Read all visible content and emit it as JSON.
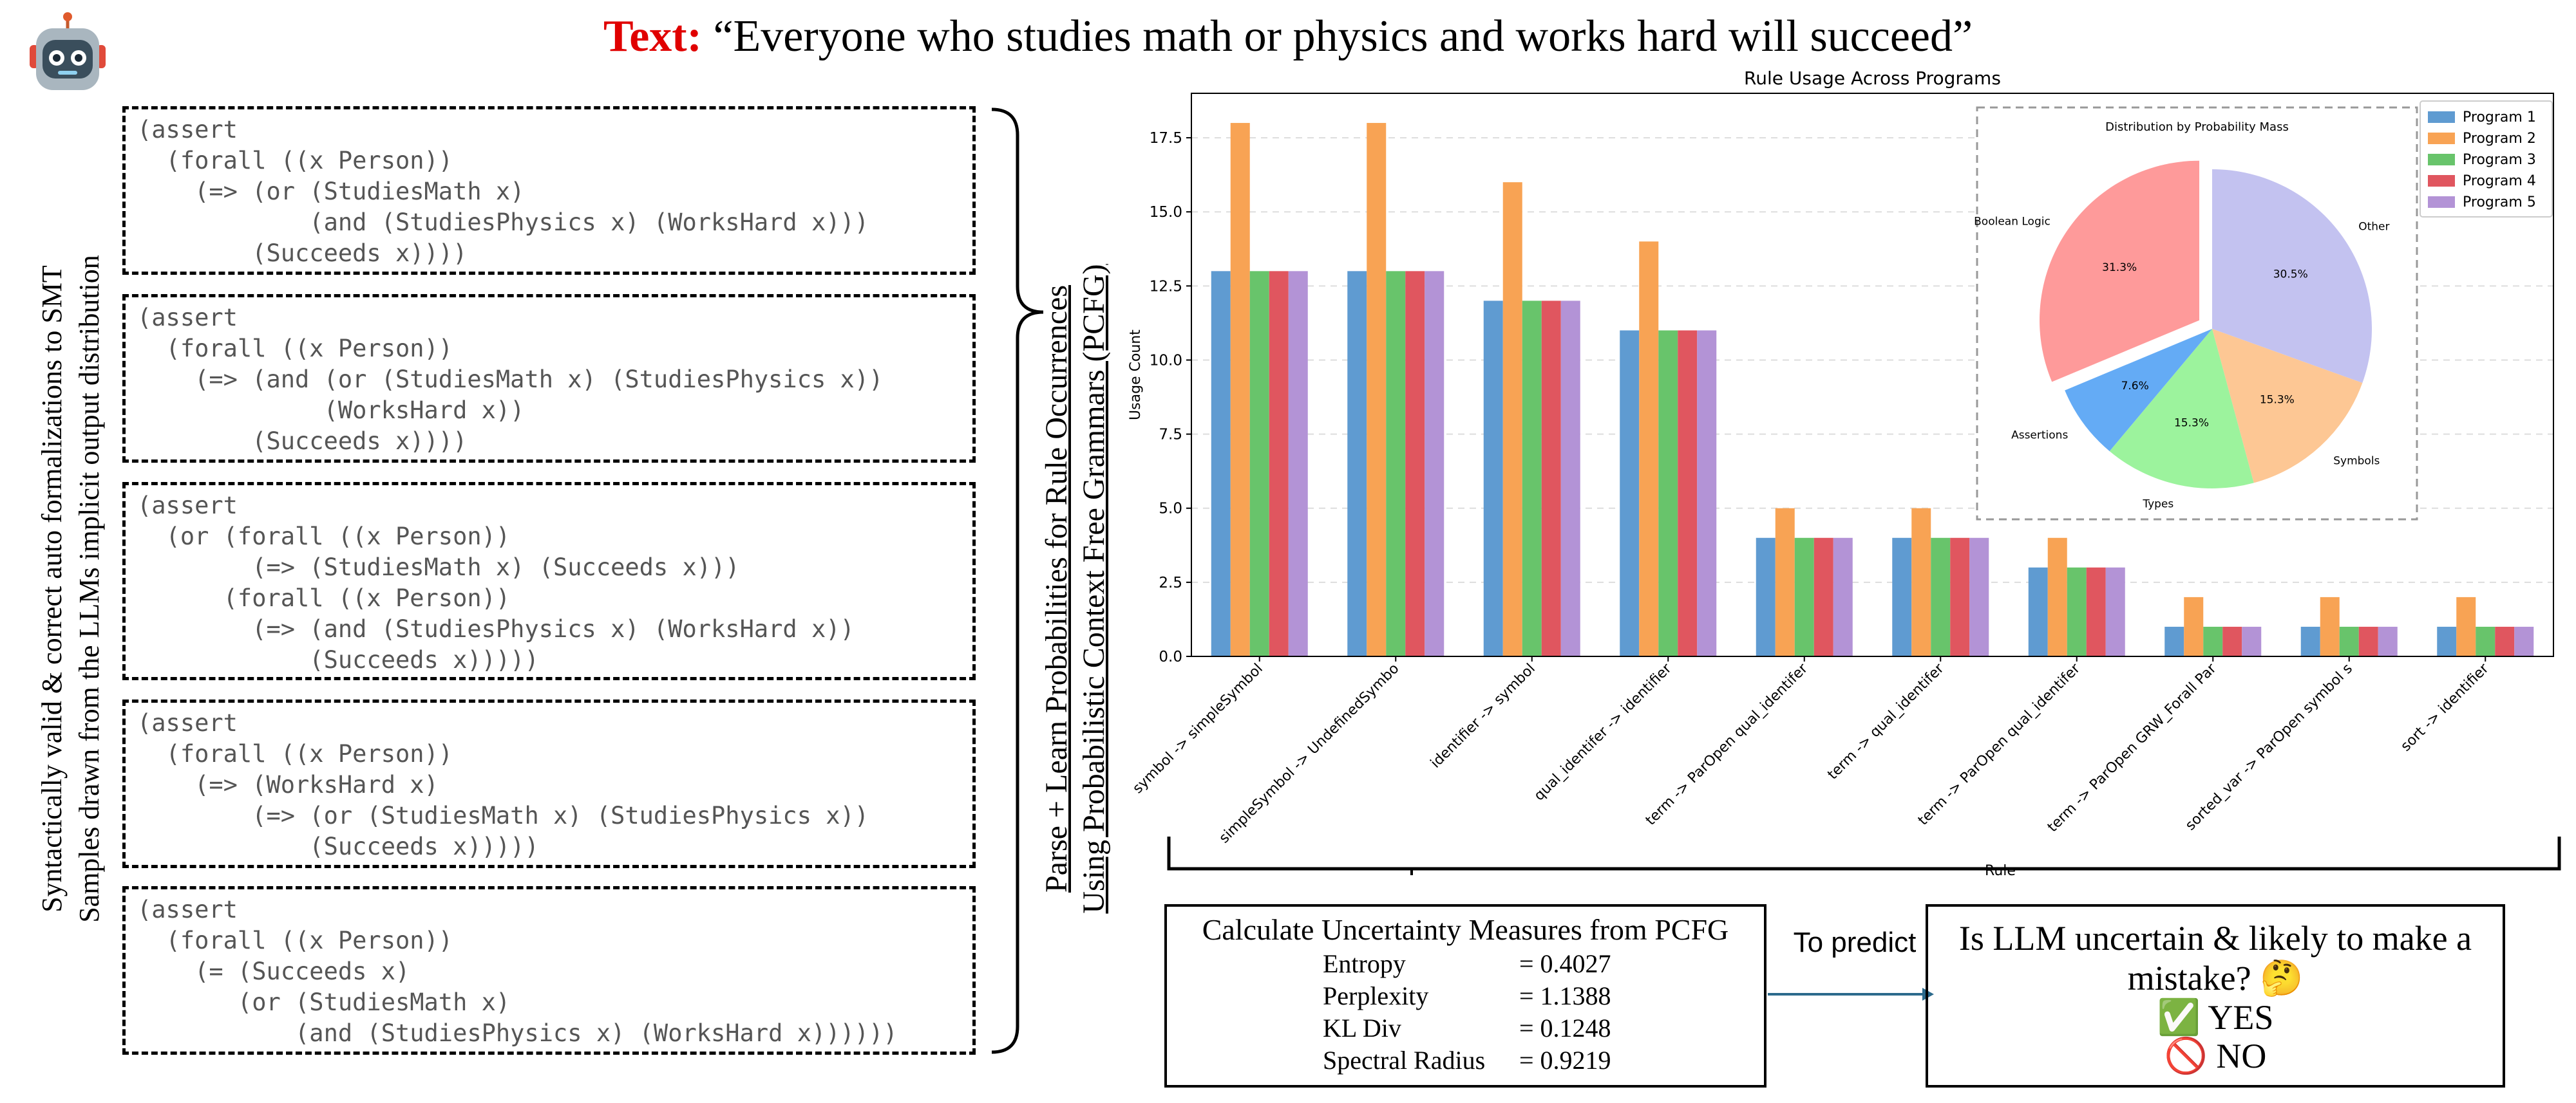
{
  "header": {
    "label": "Text:",
    "quote": "“Everyone who studies math or physics and works hard will succeed”"
  },
  "side_caption": {
    "line1": "Syntactically valid & correct auto formalizations to SMT",
    "line2": "Samples drawn from the LLMs implicit output distribution"
  },
  "code_samples": [
    "(assert\n  (forall ((x Person))\n    (=> (or (StudiesMath x)\n            (and (StudiesPhysics x) (WorksHard x)))\n        (Succeeds x))))",
    "(assert\n  (forall ((x Person))\n    (=> (and (or (StudiesMath x) (StudiesPhysics x))\n             (WorksHard x))\n        (Succeeds x))))",
    "(assert\n  (or (forall ((x Person))\n        (=> (StudiesMath x) (Succeeds x)))\n      (forall ((x Person))\n        (=> (and (StudiesPhysics x) (WorksHard x))\n            (Succeeds x)))))",
    "(assert\n  (forall ((x Person))\n    (=> (WorksHard x)\n        (=> (or (StudiesMath x) (StudiesPhysics x))\n            (Succeeds x)))))",
    "(assert\n  (forall ((x Person))\n    (= (Succeeds x)\n       (or (StudiesMath x)\n           (and (StudiesPhysics x) (WorksHard x))))))"
  ],
  "pcfg_caption": {
    "line1": "Parse + Learn Probabilities for Rule Occurrences",
    "line2": "Using Probabilistic Context Free Grammars (PCFG)"
  },
  "chart_data": [
    {
      "type": "bar",
      "title": "Rule Usage Across Programs",
      "xlabel": "Rule",
      "ylabel": "Usage Count",
      "ylim": [
        0,
        19
      ],
      "yticks": [
        "0.0",
        "2.5",
        "5.0",
        "7.5",
        "10.0",
        "12.5",
        "15.0",
        "17.5"
      ],
      "ytick_values": [
        0,
        2.5,
        5,
        7.5,
        10,
        12.5,
        15,
        17.5
      ],
      "grid": "horizontal dashed",
      "legend": "top-right",
      "categories": [
        "symbol -> simpleSymbol",
        "simpleSymbol -> UndefinedSymbo",
        "identifier -> symbol",
        "qual_identifer -> identifier",
        "term -> ParOpen qual_identifer",
        "term -> qual_identifer",
        "term -> ParOpen qual_identifer",
        "term -> ParOpen GRW_Forall Par",
        "sorted_var -> ParOpen symbol s",
        "sort -> identifier"
      ],
      "series": [
        {
          "name": "Program 1",
          "color": "#5f9bd1",
          "values": [
            13,
            13,
            12,
            11,
            4,
            4,
            3,
            1,
            1,
            1
          ]
        },
        {
          "name": "Program 2",
          "color": "#f8a354",
          "values": [
            18,
            18,
            16,
            14,
            5,
            5,
            4,
            2,
            2,
            2
          ]
        },
        {
          "name": "Program 3",
          "color": "#68c46b",
          "values": [
            13,
            13,
            12,
            11,
            4,
            4,
            3,
            1,
            1,
            1
          ]
        },
        {
          "name": "Program 4",
          "color": "#e0565f",
          "values": [
            13,
            13,
            12,
            11,
            4,
            4,
            3,
            1,
            1,
            1
          ]
        },
        {
          "name": "Program 5",
          "color": "#b393d6",
          "values": [
            13,
            13,
            12,
            11,
            4,
            4,
            3,
            1,
            1,
            1
          ]
        }
      ]
    },
    {
      "type": "pie",
      "title": "Distribution by Probability Mass",
      "slices": [
        {
          "label": "Other",
          "value": 30.5,
          "text": "30.5%",
          "color": "#c3c2f0"
        },
        {
          "label": "Symbols",
          "value": 15.3,
          "text": "15.3%",
          "color": "#fdc794"
        },
        {
          "label": "Types",
          "value": 15.3,
          "text": "15.3%",
          "color": "#9cf39d"
        },
        {
          "label": "Assertions",
          "value": 7.6,
          "text": "7.6%",
          "color": "#64abf5"
        },
        {
          "label": "Boolean Logic",
          "value": 31.3,
          "text": "31.3%",
          "color": "#fe9a9a",
          "exploded": true
        }
      ]
    }
  ],
  "measures": {
    "title": "Calculate Uncertainty Measures from PCFG",
    "rows": [
      {
        "name": "Entropy",
        "value": "= 0.4027"
      },
      {
        "name": "Perplexity",
        "value": "= 1.1388"
      },
      {
        "name": "KL Div",
        "value": "= 0.1248"
      },
      {
        "name": "Spectral Radius",
        "value": "= 0.9219"
      }
    ]
  },
  "predict_label": "To predict",
  "question": {
    "text": "Is LLM uncertain & likely to make a mistake? 🤔",
    "yes": "✅ YES",
    "no": "🚫 NO"
  },
  "colors": {
    "header_label": "#e00000",
    "arrow": "#2c6a8c"
  }
}
